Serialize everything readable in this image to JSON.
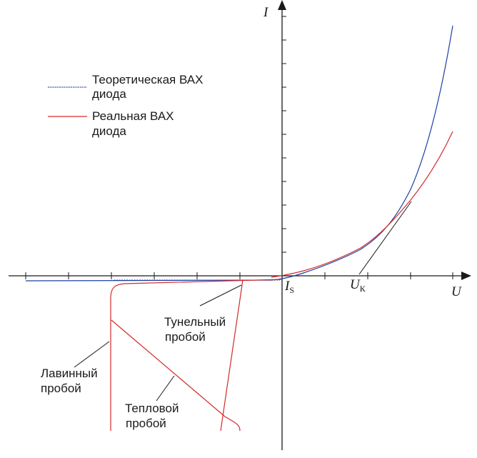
{
  "colors": {
    "theoretical": "#1f3fa8",
    "real": "#d42a2a",
    "axis": "#1a1a1a"
  },
  "axes": {
    "y_label": "I",
    "x_label": "U",
    "is_main": "I",
    "is_sub": "S",
    "uk_main": "U",
    "uk_sub": "К"
  },
  "legend": {
    "theoretical_line1": "Теоретическая ВАХ",
    "theoretical_line2": "диода",
    "real_line1": "Реальная ВАХ",
    "real_line2": "диода"
  },
  "annotations": {
    "tunnel_line1": "Тунельный",
    "tunnel_line2": "пробой",
    "avalanche_line1": "Лавинный",
    "avalanche_line2": "пробой",
    "thermal_line1": "Тепловой",
    "thermal_line2": "пробой"
  }
}
